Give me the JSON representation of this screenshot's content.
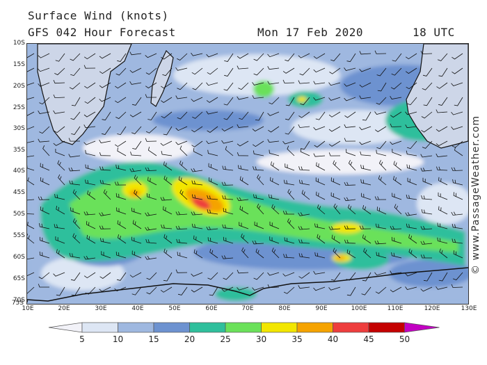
{
  "header": {
    "title": "Surface Wind (knots)",
    "forecast": "GFS 042 Hour Forecast",
    "date": "Mon 17 Feb 2020",
    "time": "18 UTC"
  },
  "map": {
    "lat_labels": [
      "10S",
      "15S",
      "20S",
      "25S",
      "30S",
      "35S",
      "40S",
      "45S",
      "50S",
      "55S",
      "60S",
      "65S",
      "70S",
      "75S"
    ],
    "lon_labels": [
      "10E",
      "20E",
      "30E",
      "40E",
      "50E",
      "60E",
      "70E",
      "80E",
      "90E",
      "100E",
      "110E",
      "120E",
      "130E"
    ],
    "lat_range": [
      -10,
      -75
    ],
    "lon_range": [
      10,
      130
    ],
    "max_wind_region": "south of Madagascar near 45S-50S 55E"
  },
  "legend": {
    "labels": [
      "5",
      "10",
      "15",
      "20",
      "25",
      "30",
      "35",
      "40",
      "45",
      "50"
    ],
    "colors": [
      "#f2f2f8",
      "#dde6f4",
      "#9fb8e0",
      "#6d92d0",
      "#2fbf9c",
      "#6be15a",
      "#f2e600",
      "#f5a300",
      "#ee3d3d",
      "#c40000",
      "#c200c2"
    ]
  },
  "copyright": "© www.PassageWeather.com"
}
